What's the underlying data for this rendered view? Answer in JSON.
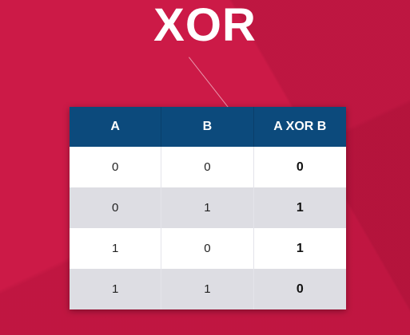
{
  "title": "XOR",
  "table": {
    "headers": [
      "A",
      "B",
      "A XOR B"
    ],
    "rows": [
      [
        "0",
        "0",
        "0"
      ],
      [
        "0",
        "1",
        "1"
      ],
      [
        "1",
        "0",
        "1"
      ],
      [
        "1",
        "1",
        "0"
      ]
    ]
  },
  "colors": {
    "background": "#cc1a47",
    "header": "#0c4a7c",
    "row_light": "#ffffff",
    "row_alt": "#dddde3"
  }
}
